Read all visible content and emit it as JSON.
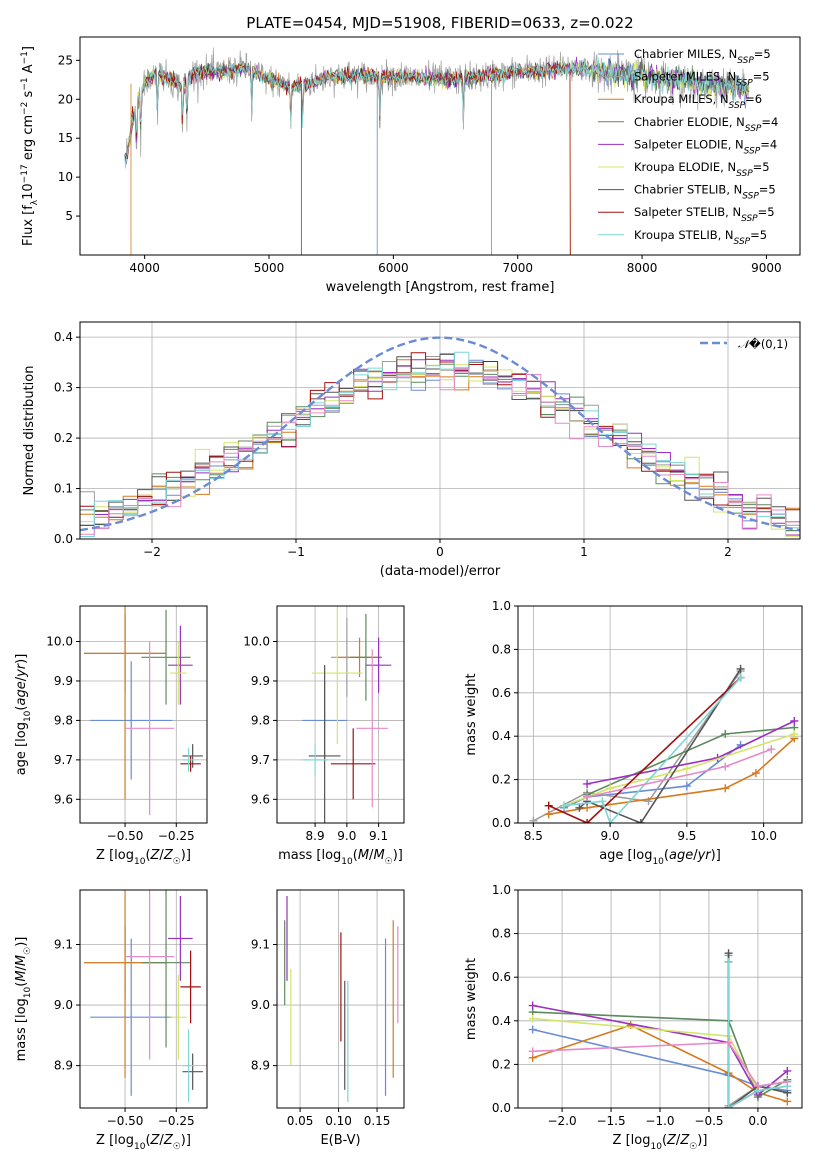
{
  "figure_title": "PLATE=0454, MJD=51908, FIBERID=0633, z=0.022",
  "colors": [
    "#6a8bd6",
    "#9e9e9e",
    "#d67a1f",
    "#5d8a5d",
    "#9b30c0",
    "#d4e46a",
    "#555555",
    "#a01010",
    "#7ed6d6",
    "#e68ac8"
  ],
  "chart_data": [
    {
      "id": "spectrum",
      "type": "line",
      "xlabel": "wavelength [Angstrom, rest frame]",
      "ylabel": "Flux [f_λ10^-17 erg cm^-2 s^-1 A^-1]",
      "xlim": [
        3480,
        9270
      ],
      "ylim": [
        0,
        28
      ],
      "xticks": [
        4000,
        5000,
        6000,
        7000,
        8000,
        9000
      ],
      "yticks": [
        5,
        10,
        15,
        20,
        25
      ],
      "grid": false,
      "legend_position": "top-right",
      "series": [
        {
          "name": "Chabrier MILES, N_SSP=5",
          "color": "#6a8bd6"
        },
        {
          "name": "Salpeter MILES, N_SSP=5",
          "color": "#9e9e9e"
        },
        {
          "name": "Kroupa MILES, N_SSP=6",
          "color": "#d67a1f"
        },
        {
          "name": "Chabrier ELODIE, N_SSP=4",
          "color": "#5d8a5d"
        },
        {
          "name": "Salpeter ELODIE, N_SSP=4",
          "color": "#9b30c0"
        },
        {
          "name": "Kroupa ELODIE, N_SSP=5",
          "color": "#d4e46a"
        },
        {
          "name": "Chabrier STELIB, N_SSP=5",
          "color": "#555555"
        },
        {
          "name": "Salpeter STELIB, N_SSP=5",
          "color": "#a01010"
        },
        {
          "name": "Kroupa STELIB, N_SSP=5",
          "color": "#7ed6d6"
        }
      ],
      "continuum": {
        "x": [
          3800,
          3850,
          3900,
          3950,
          4000,
          4100,
          4200,
          4300,
          4400,
          4600,
          4800,
          5000,
          5200,
          5500,
          6000,
          6500,
          7000,
          7500,
          8000,
          8500,
          9000
        ],
        "y": [
          14,
          12,
          17,
          20,
          22,
          23.5,
          22.5,
          21.5,
          23.5,
          23.5,
          24,
          22.5,
          21.5,
          23,
          23,
          22.5,
          23.5,
          24,
          23,
          22,
          21
        ]
      }
    },
    {
      "id": "residuals",
      "type": "histogram",
      "xlabel": "(data-model)/error",
      "ylabel": "Normed distribution",
      "xlim": [
        -2.5,
        2.5
      ],
      "ylim": [
        0,
        0.43
      ],
      "xticks": [
        -2,
        -1,
        0,
        1,
        2
      ],
      "yticks": [
        0.0,
        0.1,
        0.2,
        0.3,
        0.4
      ],
      "grid": true,
      "legend_position": "top-right",
      "legend": "𝒩(0,1)",
      "gaussian": {
        "mean": 0,
        "sigma": 1,
        "color": "#6a8bd6"
      },
      "bin_width": 0.1,
      "bin_start": -2.5
    },
    {
      "id": "age-vs-Z",
      "type": "errorbar",
      "xlabel": "Z [log10(Z/Z☉)]",
      "ylabel": "age [log10(age/yr)]",
      "xlim": [
        -0.72,
        -0.1
      ],
      "ylim": [
        9.54,
        10.09
      ],
      "xticks": [
        -0.5,
        -0.25
      ],
      "yticks": [
        9.6,
        9.7,
        9.8,
        9.9,
        10.0
      ],
      "grid": true,
      "points": [
        {
          "x": -0.47,
          "y": 9.8,
          "xerr": 0.2,
          "yerr": 0.15,
          "color": "#6a8bd6"
        },
        {
          "x": -0.5,
          "y": 9.97,
          "xerr": 0.2,
          "yerr": 0.1,
          "color": "#9e9e9e"
        },
        {
          "x": -0.5,
          "y": 9.97,
          "xerr": 0.2,
          "yerr": 0.37,
          "color": "#d67a1f"
        },
        {
          "x": -0.3,
          "y": 9.96,
          "xerr": 0.12,
          "yerr": 0.12,
          "color": "#5d8a5d"
        },
        {
          "x": -0.23,
          "y": 9.94,
          "xerr": 0.06,
          "yerr": 0.1,
          "color": "#9b30c0"
        },
        {
          "x": -0.24,
          "y": 9.92,
          "xerr": 0.04,
          "yerr": 0.08,
          "color": "#d4e46a"
        },
        {
          "x": -0.17,
          "y": 9.71,
          "xerr": 0.05,
          "yerr": 0.03,
          "color": "#555555"
        },
        {
          "x": -0.18,
          "y": 9.69,
          "xerr": 0.05,
          "yerr": 0.02,
          "color": "#a01010"
        },
        {
          "x": -0.19,
          "y": 9.7,
          "xerr": 0.03,
          "yerr": 0.03,
          "color": "#7ed6d6"
        },
        {
          "x": -0.38,
          "y": 9.78,
          "xerr": 0.12,
          "yerr": 0.22,
          "color": "#e68ac8"
        }
      ]
    },
    {
      "id": "age-vs-mass",
      "type": "errorbar",
      "xlabel": "mass [log10(M/M☉)]",
      "ylabel": "",
      "xlim": [
        8.78,
        9.18
      ],
      "ylim": [
        9.54,
        10.09
      ],
      "xticks": [
        8.9,
        9.0,
        9.1
      ],
      "yticks": [
        9.6,
        9.7,
        9.8,
        9.9,
        10.0
      ],
      "grid": true,
      "points": [
        {
          "x": 8.93,
          "y": 9.8,
          "xerr": 0.07,
          "yerr": 0.1,
          "color": "#6a8bd6"
        },
        {
          "x": 9.0,
          "y": 9.96,
          "xerr": 0.05,
          "yerr": 0.1,
          "color": "#9e9e9e"
        },
        {
          "x": 9.04,
          "y": 9.96,
          "xerr": 0.07,
          "yerr": 0.05,
          "color": "#d67a1f"
        },
        {
          "x": 9.06,
          "y": 9.96,
          "xerr": 0.05,
          "yerr": 0.11,
          "color": "#5d8a5d"
        },
        {
          "x": 9.1,
          "y": 9.94,
          "xerr": 0.04,
          "yerr": 0.07,
          "color": "#9b30c0"
        },
        {
          "x": 8.97,
          "y": 9.92,
          "xerr": 0.08,
          "yerr": 0.18,
          "color": "#d4e46a"
        },
        {
          "x": 8.93,
          "y": 9.71,
          "xerr": 0.05,
          "yerr": 0.23,
          "color": "#555555"
        },
        {
          "x": 9.02,
          "y": 9.69,
          "xerr": 0.07,
          "yerr": 0.09,
          "color": "#a01010"
        },
        {
          "x": 8.9,
          "y": 9.7,
          "xerr": 0.04,
          "yerr": 0.04,
          "color": "#7ed6d6"
        },
        {
          "x": 9.08,
          "y": 9.78,
          "xerr": 0.05,
          "yerr": 0.2,
          "color": "#e68ac8"
        }
      ]
    },
    {
      "id": "massweight-vs-age",
      "type": "line",
      "xlabel": "age [log10(age/yr)]",
      "ylabel": "mass weight",
      "xlim": [
        8.4,
        10.25
      ],
      "ylim": [
        0,
        1
      ],
      "xticks": [
        8.5,
        9.0,
        9.5,
        10.0
      ],
      "yticks": [
        0.0,
        0.2,
        0.4,
        0.6,
        0.8,
        1.0
      ],
      "grid": true,
      "series": [
        {
          "color": "#6a8bd6",
          "x": [
            8.7,
            8.85,
            9.5,
            9.85
          ],
          "y": [
            0.07,
            0.12,
            0.17,
            0.36
          ]
        },
        {
          "color": "#9e9e9e",
          "x": [
            8.5,
            8.85,
            9.25,
            9.85
          ],
          "y": [
            0.01,
            0.14,
            0.1,
            0.7
          ]
        },
        {
          "color": "#d67a1f",
          "x": [
            8.6,
            8.85,
            9.75,
            9.95,
            10.2
          ],
          "y": [
            0.04,
            0.07,
            0.16,
            0.23,
            0.39
          ]
        },
        {
          "color": "#5d8a5d",
          "x": [
            8.85,
            9.75,
            10.2
          ],
          "y": [
            0.13,
            0.41,
            0.44
          ]
        },
        {
          "color": "#9b30c0",
          "x": [
            8.85,
            9.7,
            10.2
          ],
          "y": [
            0.18,
            0.3,
            0.47
          ]
        },
        {
          "color": "#d4e46a",
          "x": [
            8.7,
            9.0,
            9.5,
            10.2
          ],
          "y": [
            0.08,
            0.16,
            0.25,
            0.41
          ]
        },
        {
          "color": "#555555",
          "x": [
            8.8,
            8.85,
            9.2,
            9.85
          ],
          "y": [
            0.07,
            0.1,
            0.0,
            0.71
          ]
        },
        {
          "color": "#a01010",
          "x": [
            8.6,
            8.85,
            9.85
          ],
          "y": [
            0.08,
            0.0,
            0.67
          ]
        },
        {
          "color": "#7ed6d6",
          "x": [
            8.7,
            8.95,
            9.0,
            9.85
          ],
          "y": [
            0.08,
            0.1,
            0.0,
            0.67
          ]
        },
        {
          "color": "#e68ac8",
          "x": [
            8.85,
            9.75,
            10.05
          ],
          "y": [
            0.12,
            0.26,
            0.34
          ]
        }
      ]
    },
    {
      "id": "mass-vs-Z",
      "type": "errorbar",
      "xlabel": "Z [log10(Z/Z☉)]",
      "ylabel": "mass [log10(M/M☉)]",
      "xlim": [
        -0.72,
        -0.1
      ],
      "ylim": [
        8.83,
        9.19
      ],
      "xticks": [
        -0.5,
        -0.25
      ],
      "yticks": [
        8.9,
        9.0,
        9.1
      ],
      "grid": true,
      "points": [
        {
          "x": -0.47,
          "y": 8.98,
          "xerr": 0.2,
          "yerr": 0.13,
          "color": "#6a8bd6"
        },
        {
          "x": -0.5,
          "y": 9.07,
          "xerr": 0.2,
          "yerr": 0.06,
          "color": "#9e9e9e"
        },
        {
          "x": -0.5,
          "y": 9.07,
          "xerr": 0.2,
          "yerr": 0.19,
          "color": "#d67a1f"
        },
        {
          "x": -0.3,
          "y": 9.07,
          "xerr": 0.12,
          "yerr": 0.14,
          "color": "#5d8a5d"
        },
        {
          "x": -0.23,
          "y": 9.11,
          "xerr": 0.06,
          "yerr": 0.07,
          "color": "#9b30c0"
        },
        {
          "x": -0.24,
          "y": 8.98,
          "xerr": 0.04,
          "yerr": 0.07,
          "color": "#d4e46a"
        },
        {
          "x": -0.17,
          "y": 8.89,
          "xerr": 0.05,
          "yerr": 0.03,
          "color": "#555555"
        },
        {
          "x": -0.18,
          "y": 9.03,
          "xerr": 0.05,
          "yerr": 0.06,
          "color": "#a01010"
        },
        {
          "x": -0.19,
          "y": 8.9,
          "xerr": 0.03,
          "yerr": 0.06,
          "color": "#7ed6d6"
        },
        {
          "x": -0.38,
          "y": 9.08,
          "xerr": 0.12,
          "yerr": 0.17,
          "color": "#e68ac8"
        }
      ]
    },
    {
      "id": "mass-vs-EBV",
      "type": "errorbar",
      "xlabel": "E(B-V)",
      "ylabel": "",
      "xlim": [
        0.02,
        0.185
      ],
      "ylim": [
        8.83,
        9.19
      ],
      "xticks": [
        0.05,
        0.1,
        0.15
      ],
      "yticks": [
        8.9,
        9.0,
        9.1
      ],
      "grid": true,
      "points": [
        {
          "x": 0.161,
          "y": 8.98,
          "xerr": 0,
          "yerr": 0.13,
          "color": "#6a8bd6"
        },
        {
          "x": 0.03,
          "y": 9.07,
          "xerr": 0,
          "yerr": 0.07,
          "color": "#5d8a5d"
        },
        {
          "x": 0.033,
          "y": 9.11,
          "xerr": 0,
          "yerr": 0.07,
          "color": "#9b30c0"
        },
        {
          "x": 0.038,
          "y": 8.98,
          "xerr": 0,
          "yerr": 0.08,
          "color": "#d4e46a"
        },
        {
          "x": 0.108,
          "y": 8.95,
          "xerr": 0,
          "yerr": 0.09,
          "color": "#555555"
        },
        {
          "x": 0.103,
          "y": 9.03,
          "xerr": 0,
          "yerr": 0.09,
          "color": "#a01010"
        },
        {
          "x": 0.112,
          "y": 8.94,
          "xerr": 0,
          "yerr": 0.1,
          "color": "#7ed6d6"
        },
        {
          "x": 0.171,
          "y": 9.01,
          "xerr": 0,
          "yerr": 0.13,
          "color": "#d67a1f"
        },
        {
          "x": 0.177,
          "y": 9.05,
          "xerr": 0,
          "yerr": 0.08,
          "color": "#e68ac8"
        }
      ]
    },
    {
      "id": "massweight-vs-Z",
      "type": "line",
      "xlabel": "Z [log10(Z/Z☉)]",
      "ylabel": "mass weight",
      "xlim": [
        -2.45,
        0.45
      ],
      "ylim": [
        0,
        1
      ],
      "xticks": [
        -2.0,
        -1.5,
        -1.0,
        -0.5,
        0.0
      ],
      "yticks": [
        0.0,
        0.2,
        0.4,
        0.6,
        0.8,
        1.0
      ],
      "grid": true,
      "series": [
        {
          "color": "#6a8bd6",
          "x": [
            -2.3,
            -0.3,
            0.0,
            0.3
          ],
          "y": [
            0.36,
            0.15,
            0.1,
            0.08
          ]
        },
        {
          "color": "#9e9e9e",
          "x": [
            -0.3,
            -0.3,
            0.0,
            0.3
          ],
          "y": [
            0.7,
            0.01,
            0.1,
            0.12
          ]
        },
        {
          "color": "#d67a1f",
          "x": [
            -2.3,
            -1.3,
            -0.3,
            0.0,
            0.3
          ],
          "y": [
            0.23,
            0.38,
            0.16,
            0.07,
            0.03
          ]
        },
        {
          "color": "#5d8a5d",
          "x": [
            -2.3,
            -0.3,
            0.0,
            0.3
          ],
          "y": [
            0.44,
            0.4,
            0.05,
            0.13
          ]
        },
        {
          "color": "#9b30c0",
          "x": [
            -2.3,
            -0.3,
            0.0,
            0.3
          ],
          "y": [
            0.47,
            0.3,
            0.06,
            0.17
          ]
        },
        {
          "color": "#d4e46a",
          "x": [
            -2.3,
            -0.3,
            0.0,
            0.3
          ],
          "y": [
            0.41,
            0.33,
            0.08,
            0.1
          ]
        },
        {
          "color": "#555555",
          "x": [
            -0.3,
            -0.3,
            0.0,
            0.3
          ],
          "y": [
            0.71,
            0.0,
            0.1,
            0.07
          ]
        },
        {
          "color": "#a01010",
          "x": [
            -0.3,
            -0.3,
            0.0
          ],
          "y": [
            0.67,
            0.0,
            0.08
          ]
        },
        {
          "color": "#7ed6d6",
          "x": [
            -0.3,
            -0.3,
            0.0,
            0.3
          ],
          "y": [
            0.67,
            0.0,
            0.08,
            0.1
          ]
        },
        {
          "color": "#e68ac8",
          "x": [
            -2.3,
            -0.3,
            0.0,
            0.3
          ],
          "y": [
            0.26,
            0.3,
            0.1,
            0.12
          ]
        }
      ]
    }
  ]
}
